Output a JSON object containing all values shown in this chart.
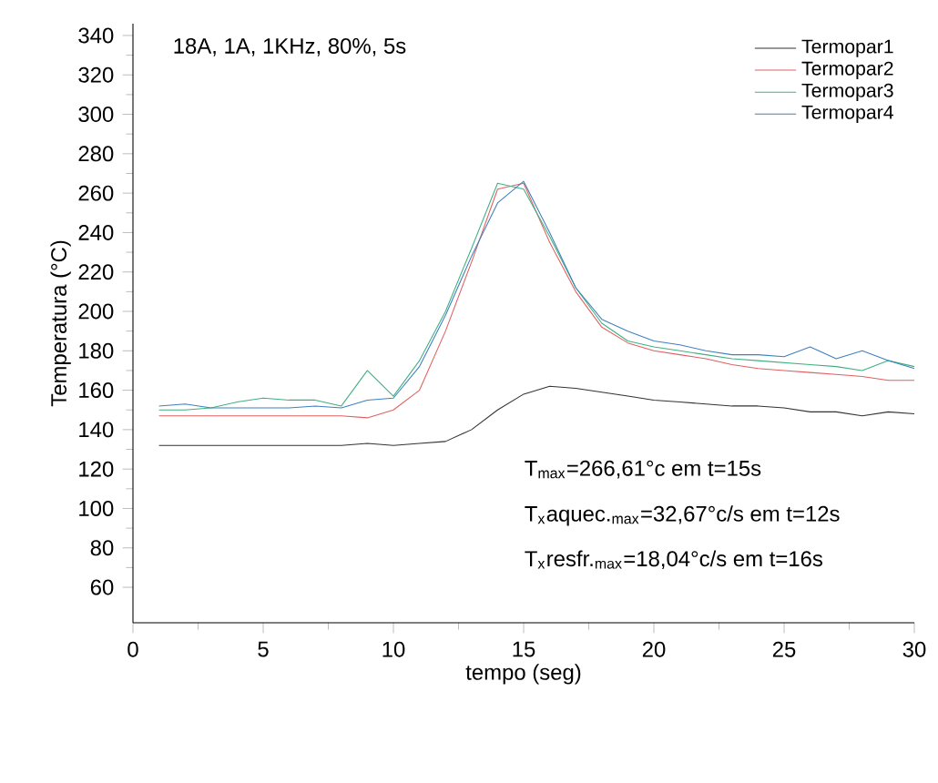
{
  "chart_data": {
    "type": "line",
    "title": "18A, 1A, 1KHz, 80%, 5s",
    "xlabel": "tempo (seg)",
    "ylabel": "Temperatura (°C)",
    "annotations": [
      "T$_{max}$=266,61°c em t=15s",
      "T$_{x}$aquec.$_{max}$=32,67°c/s em t=12s",
      "T$_{x}$resfr.$_{max}$=18,04°c/s em t=16s"
    ],
    "x": [
      1,
      2,
      3,
      4,
      5,
      6,
      7,
      8,
      9,
      10,
      11,
      12,
      13,
      14,
      15,
      16,
      17,
      18,
      19,
      20,
      21,
      22,
      23,
      24,
      25,
      26,
      27,
      28,
      29,
      30
    ],
    "series": [
      {
        "name": "Termopar1",
        "color": "#333333",
        "values": [
          132,
          132,
          132,
          132,
          132,
          132,
          132,
          132,
          133,
          132,
          133,
          134,
          140,
          150,
          158,
          162,
          161,
          159,
          157,
          155,
          154,
          153,
          152,
          152,
          151,
          149,
          149,
          147,
          149,
          148
        ]
      },
      {
        "name": "Termopar2",
        "color": "#e06060",
        "values": [
          147,
          147,
          147,
          147,
          147,
          147,
          147,
          147,
          146,
          150,
          160,
          190,
          225,
          262,
          265,
          235,
          210,
          192,
          184,
          180,
          178,
          176,
          173,
          171,
          170,
          169,
          168,
          167,
          165,
          165
        ]
      },
      {
        "name": "Termopar3",
        "color": "#40b080",
        "values": [
          150,
          150,
          151,
          154,
          156,
          155,
          155,
          152,
          170,
          157,
          175,
          200,
          232,
          265,
          262,
          238,
          212,
          194,
          185,
          182,
          180,
          178,
          176,
          175,
          174,
          173,
          172,
          170,
          175,
          172
        ]
      },
      {
        "name": "Termopar4",
        "color": "#4080c0",
        "values": [
          152,
          153,
          151,
          151,
          151,
          151,
          152,
          151,
          155,
          156,
          172,
          198,
          228,
          255,
          266,
          240,
          212,
          196,
          190,
          185,
          183,
          180,
          178,
          178,
          177,
          182,
          176,
          180,
          175,
          171
        ]
      }
    ],
    "xlim": [
      0,
      30
    ],
    "ylim": [
      42,
      346
    ],
    "xticks": [
      0,
      5,
      10,
      15,
      20,
      25,
      30
    ],
    "yticks": [
      60,
      80,
      100,
      120,
      140,
      160,
      180,
      200,
      220,
      240,
      260,
      280,
      300,
      320,
      340
    ],
    "grid": false,
    "legend": "top right",
    "marker": "none",
    "line_style": "solid"
  }
}
